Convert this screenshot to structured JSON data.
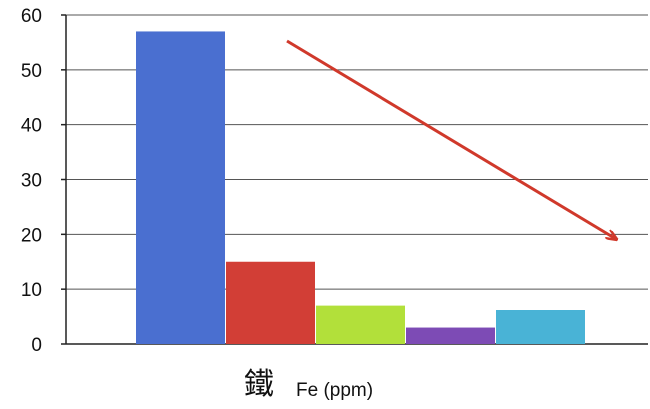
{
  "chart_data": {
    "type": "bar",
    "title": "",
    "xlabel": "鐵 Fe (ppm)",
    "xlabel_parts": {
      "cjk": "鐵",
      "latin": "Fe (ppm)"
    },
    "ylabel": "",
    "ylim": [
      0,
      60
    ],
    "yticks": [
      "0",
      "10",
      "20",
      "30",
      "40",
      "50",
      "60"
    ],
    "grid": true,
    "legend": "none",
    "series": [
      {
        "value": 57,
        "color": "#4a6fd0"
      },
      {
        "value": 15,
        "color": "#d23e36"
      },
      {
        "value": 7,
        "color": "#b2e03a"
      },
      {
        "value": 3,
        "color": "#7d4bb5"
      },
      {
        "value": 6.2,
        "color": "#49b3d6"
      }
    ],
    "annotation": {
      "type": "arrow",
      "direction": "downward trend",
      "color": "#d0392b"
    }
  }
}
